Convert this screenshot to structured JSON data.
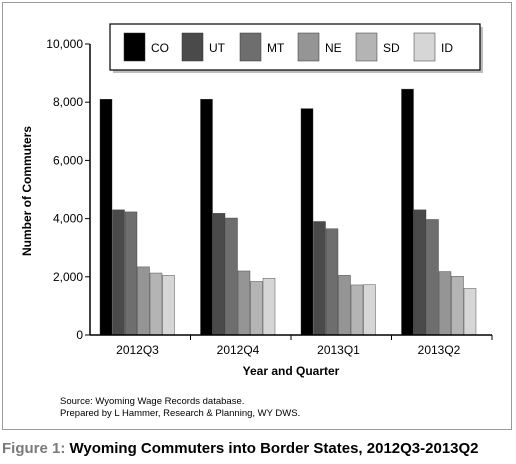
{
  "chart_data": {
    "type": "bar",
    "categories": [
      "2012Q3",
      "2012Q4",
      "2013Q1",
      "2013Q2"
    ],
    "series": [
      {
        "name": "CO",
        "color": "#000000",
        "values": [
          8100,
          8100,
          7780,
          8450
        ]
      },
      {
        "name": "UT",
        "color": "#4a4a4a",
        "values": [
          4300,
          4180,
          3900,
          4300
        ]
      },
      {
        "name": "MT",
        "color": "#6e6e6e",
        "values": [
          4230,
          4020,
          3650,
          3970
        ]
      },
      {
        "name": "NE",
        "color": "#959595",
        "values": [
          2340,
          2200,
          2050,
          2180
        ]
      },
      {
        "name": "SD",
        "color": "#b4b4b4",
        "values": [
          2130,
          1840,
          1720,
          2020
        ]
      },
      {
        "name": "ID",
        "color": "#d6d6d6",
        "values": [
          2050,
          1950,
          1730,
          1600
        ]
      }
    ],
    "xlabel": "Year and Quarter",
    "ylabel": "Number of Commuters",
    "ylim": [
      0,
      10000
    ],
    "yticks": [
      0,
      2000,
      4000,
      6000,
      8000,
      10000
    ],
    "ytick_labels": [
      "0",
      "2,000",
      "4,000",
      "6,000",
      "8,000",
      "10,000"
    ],
    "grid": false,
    "legend_position": "top-right"
  },
  "source_note": {
    "line1": "Source: Wyoming Wage Records database.",
    "line2": "Prepared by L Hammer, Research & Planning, WY DWS."
  },
  "caption": {
    "prefix": "Figure 1:",
    "text": " Wyoming Commuters into Border States, 2012Q3-2013Q2"
  }
}
